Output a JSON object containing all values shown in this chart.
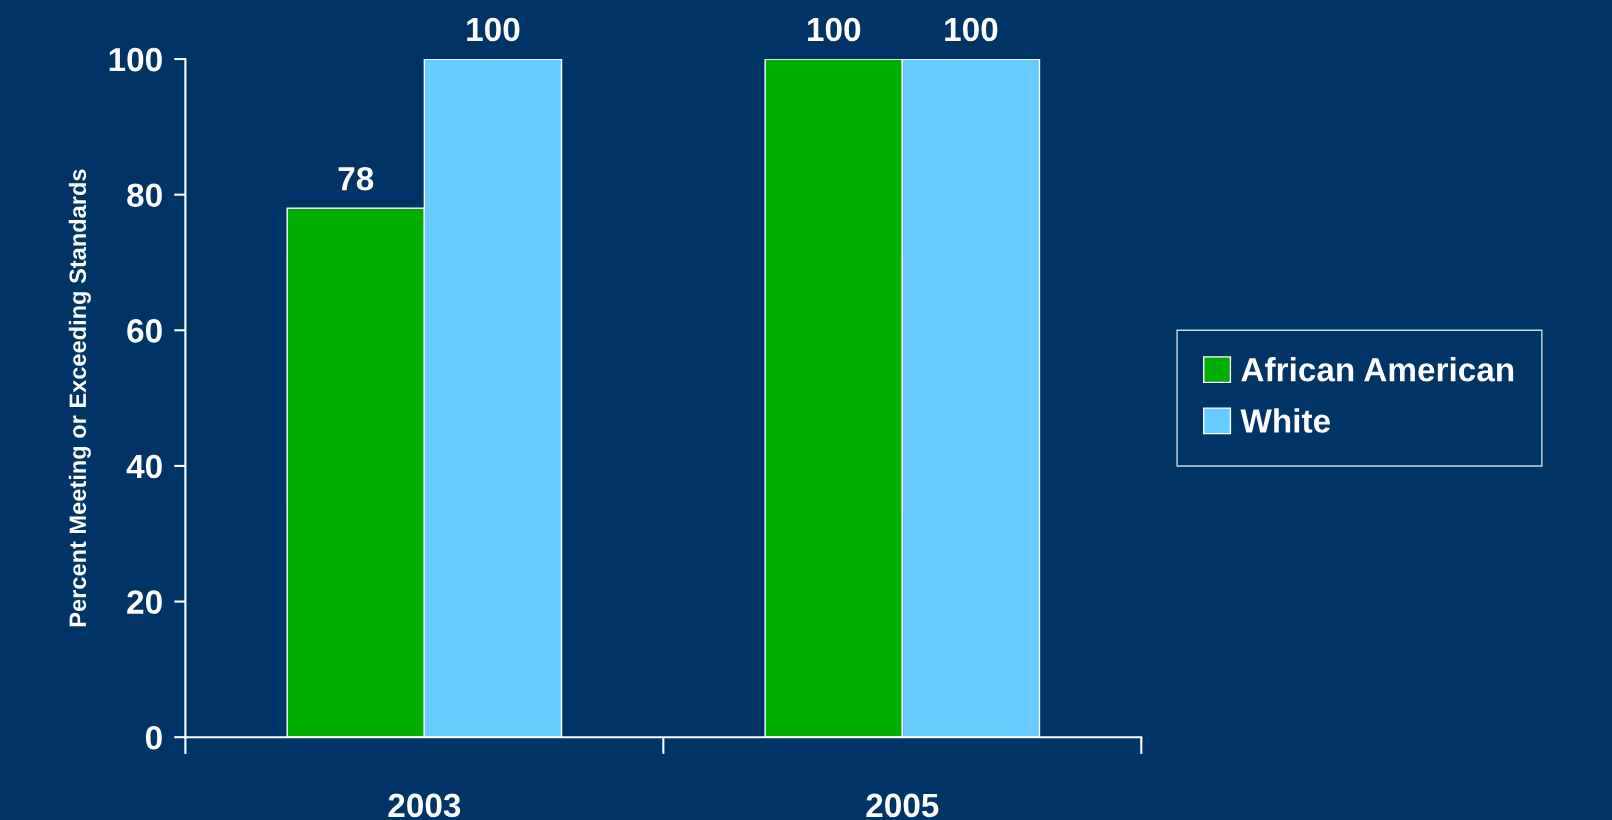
{
  "chart_data": {
    "type": "bar",
    "ylabel": "Percent Meeting or Exceeding Standards",
    "categories": [
      "2003",
      "2005"
    ],
    "series": [
      {
        "name": "African American",
        "color": "#00b000",
        "values": [
          78,
          100
        ]
      },
      {
        "name": "White",
        "color": "#66ccff",
        "values": [
          100,
          100
        ]
      }
    ],
    "ylim": [
      0,
      100
    ],
    "yticks": [
      0,
      20,
      40,
      60,
      80,
      100
    ],
    "data_labels": true,
    "legend": "right",
    "grid": false
  }
}
